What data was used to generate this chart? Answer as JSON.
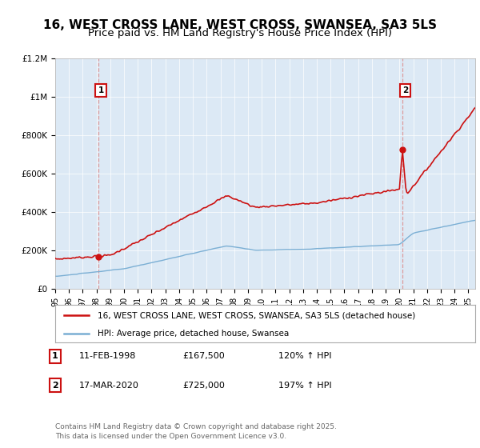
{
  "title": "16, WEST CROSS LANE, WEST CROSS, SWANSEA, SA3 5LS",
  "subtitle": "Price paid vs. HM Land Registry's House Price Index (HPI)",
  "ylim": [
    0,
    1200000
  ],
  "yticks": [
    0,
    200000,
    400000,
    600000,
    800000,
    1000000,
    1200000
  ],
  "ytick_labels": [
    "£0",
    "£200K",
    "£400K",
    "£600K",
    "£800K",
    "£1M",
    "£1.2M"
  ],
  "sale1_year": 1998.12,
  "sale1_price": 167500,
  "sale2_year": 2020.21,
  "sale2_price": 725000,
  "legend_line1": "16, WEST CROSS LANE, WEST CROSS, SWANSEA, SA3 5LS (detached house)",
  "legend_line2": "HPI: Average price, detached house, Swansea",
  "table_entries": [
    {
      "num": "1",
      "date": "11-FEB-1998",
      "price": "£167,500",
      "hpi": "120% ↑ HPI"
    },
    {
      "num": "2",
      "date": "17-MAR-2020",
      "price": "£725,000",
      "hpi": "197% ↑ HPI"
    }
  ],
  "footer": "Contains HM Land Registry data © Crown copyright and database right 2025.\nThis data is licensed under the Open Government Licence v3.0.",
  "hpi_color": "#7bafd4",
  "price_color": "#cc1111",
  "bg_color": "#ffffff",
  "chart_bg_color": "#dce9f5",
  "grid_color": "#ffffff",
  "dashed_color": "#dd8888",
  "title_fontsize": 11,
  "subtitle_fontsize": 9.5
}
